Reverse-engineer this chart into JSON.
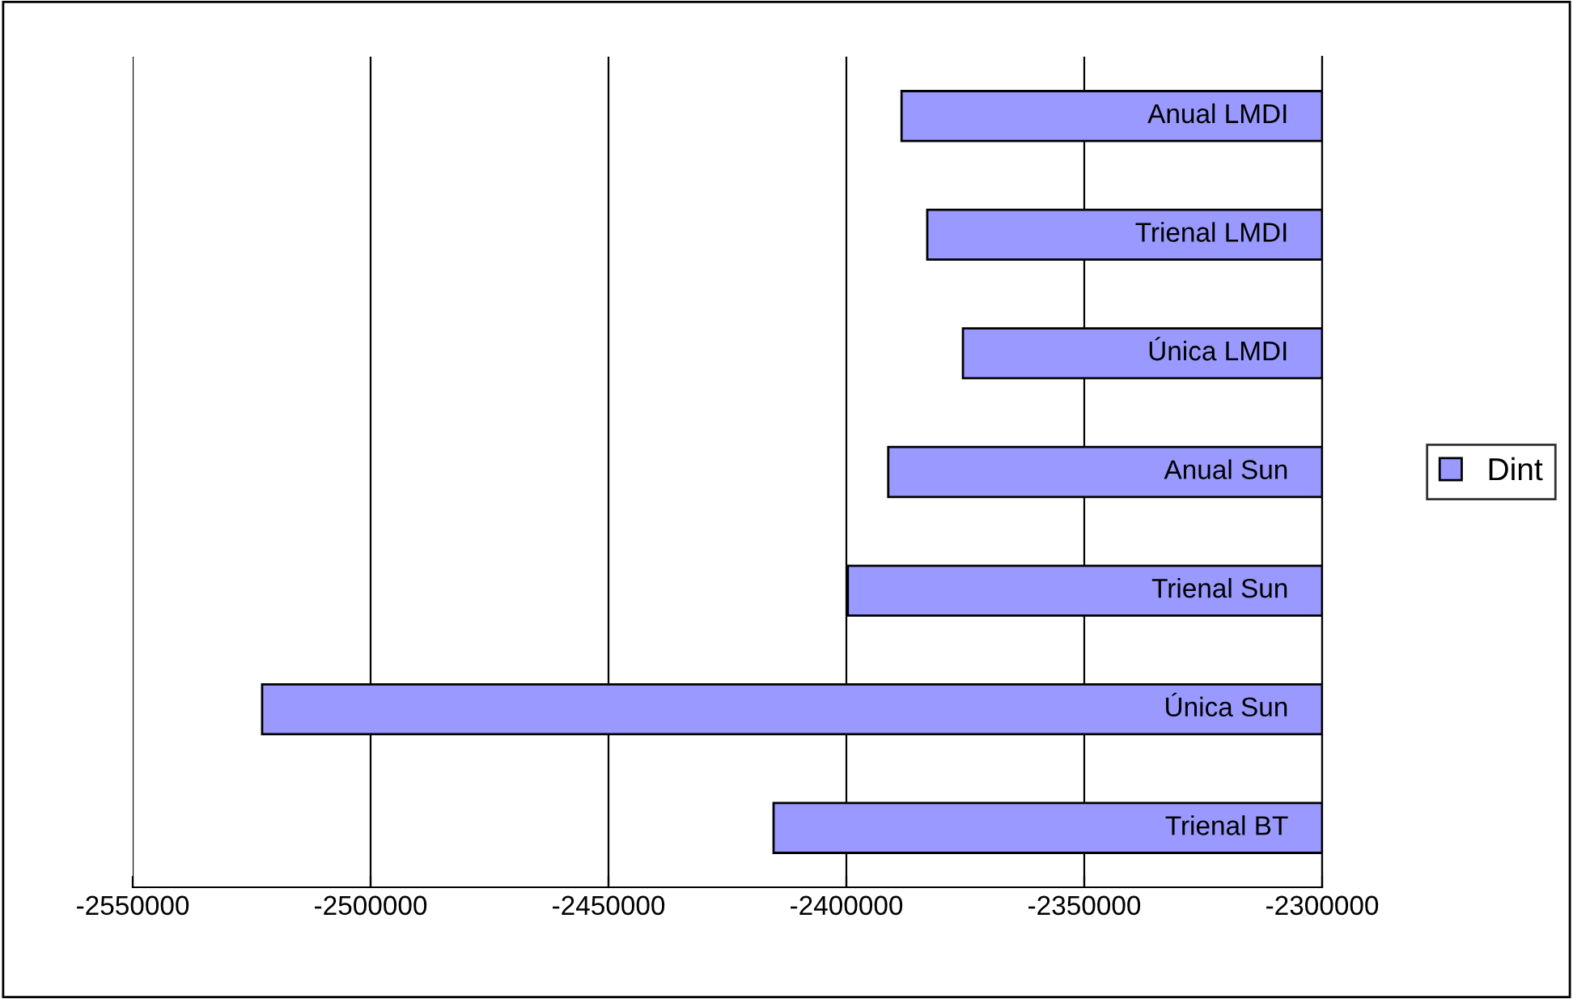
{
  "chart_data": {
    "type": "bar",
    "orientation": "horizontal",
    "categories": [
      "Anual LMDI",
      "Trienal LMDI",
      "Única LMDI",
      "Anual Sun",
      "Trienal Sun",
      "Única Sun",
      "Trienal BT"
    ],
    "series": [
      {
        "name": "Dint",
        "color": "#9999ff",
        "values": [
          -2388400,
          -2383000,
          -2375500,
          -2391200,
          -2399700,
          -2522800,
          -2415300
        ]
      }
    ],
    "xlim": [
      -2550000,
      -2300000
    ],
    "xticks": [
      -2550000,
      -2500000,
      -2450000,
      -2400000,
      -2350000,
      -2300000
    ],
    "grid": "x",
    "legend": "right"
  }
}
